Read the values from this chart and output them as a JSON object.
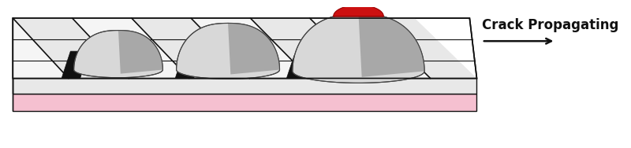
{
  "bg_color": "#ffffff",
  "plate_top_color": "#f0f0f0",
  "plate_top_white": "#ffffff",
  "plate_side_color": "#d0d0d0",
  "plate_side_dark": "#b0b0b0",
  "plate_bottom_color": "#f5c0d0",
  "plate_bottom_side_color": "#e8a8c0",
  "crack_color": "#111111",
  "cone_light_color": "#d8d8d8",
  "cone_mid_color": "#b8b8b8",
  "cone_shadow_color": "#a0a0a0",
  "cone_outline_color": "#444444",
  "magma_color": "#cc1111",
  "magma_dark": "#990000",
  "arrow_color": "#111111",
  "text": "Crack Propagating",
  "text_fontsize": 12,
  "text_color": "#111111"
}
